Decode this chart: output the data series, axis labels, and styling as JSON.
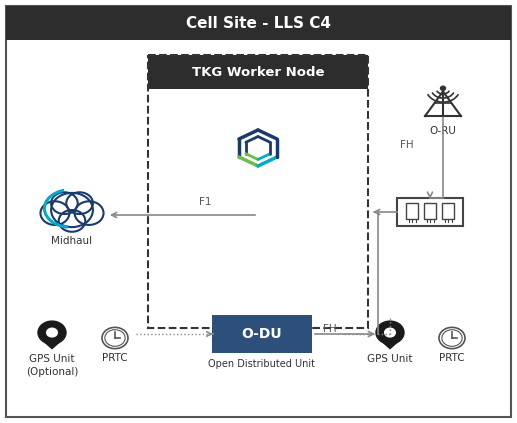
{
  "title": "Cell Site - LLS C4",
  "title_bg": "#2d2d2d",
  "title_text_color": "#ffffff",
  "outer_border_color": "#555555",
  "outer_bg": "#ffffff",
  "tkg_box_bg": "#2d2d2d",
  "tkg_box_text": "#ffffff",
  "tkg_box_label": "TKG Worker Node",
  "tkg_inner_border": "#333333",
  "odu_bg": "#2d4f7c",
  "odu_text": "#ffffff",
  "odu_label": "O-DU",
  "odu_sublabel": "Open Distributed Unit",
  "midhaul_label": "Midhaul",
  "oru_label": "O-RU",
  "gps_left_label1": "GPS Unit",
  "gps_left_label2": "(Optional)",
  "gps_right_label": "GPS Unit",
  "prtc_label": "PRTC",
  "f1_label": "F1",
  "fh_label1": "FH",
  "fh_label2": "FH",
  "arrow_color": "#888888",
  "cloud_outer_color": "#00aacc",
  "cloud_inner_color": "#1a3a6b",
  "tkg_logo_blue": "#1a3a6b",
  "tkg_logo_green": "#6abf4b",
  "tkg_logo_cyan": "#00aacc",
  "fig_w": 5.17,
  "fig_h": 4.23,
  "dpi": 100
}
